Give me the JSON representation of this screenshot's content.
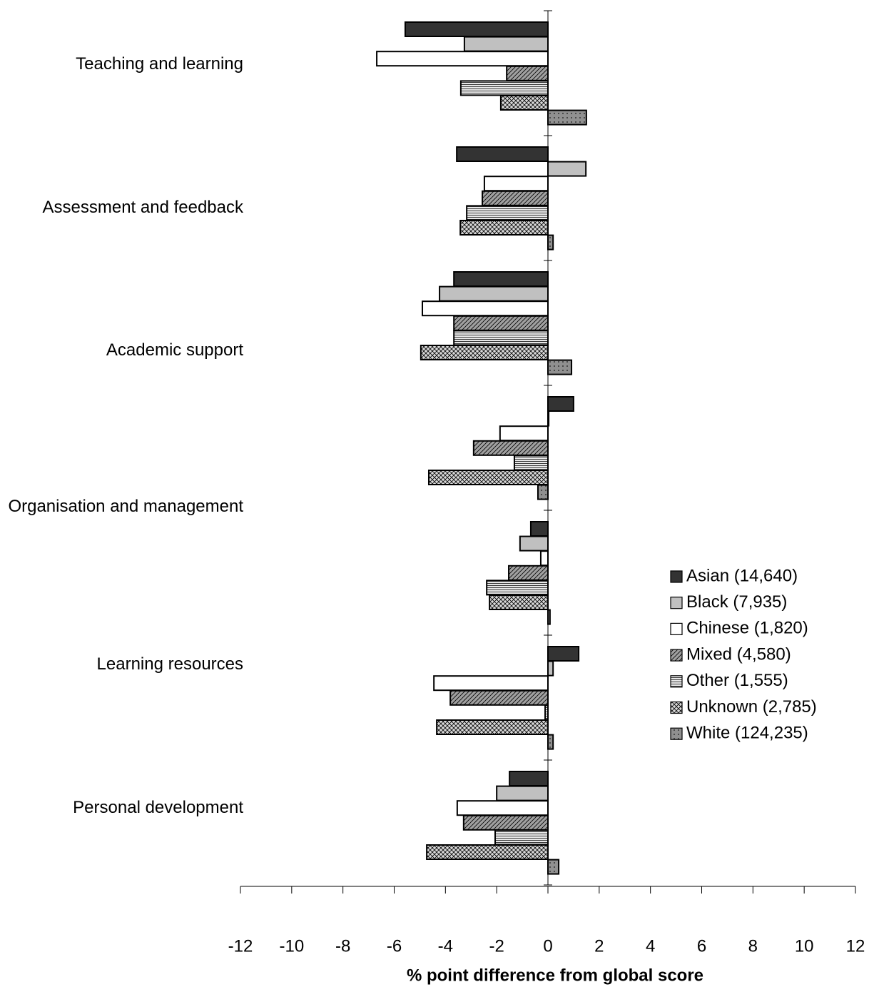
{
  "chart_data": {
    "type": "hbar",
    "xlabel": "% point difference from global score",
    "categories": [
      "Teaching and learning",
      "Assessment and feedback",
      "Academic support",
      "Organisation and management",
      null,
      "Learning resources",
      "Personal development"
    ],
    "series": [
      {
        "name": "Asian (14,640)",
        "color": "#333333",
        "values": [
          -5.57,
          -3.56,
          -3.67,
          1.0,
          -0.67,
          1.2,
          -1.5
        ]
      },
      {
        "name": "Black (7,935)",
        "color": "#c0c0c0",
        "values": [
          -3.26,
          1.48,
          -4.23,
          0.03,
          -1.09,
          0.2,
          -2.0
        ]
      },
      {
        "name": "Chinese (1,820)",
        "color": "#ffffff",
        "values": [
          -6.68,
          -2.48,
          -4.9,
          -1.87,
          -0.28,
          -4.45,
          -3.54
        ]
      },
      {
        "name": "Mixed (4,580)",
        "color": "#a0a0a0",
        "values": [
          -1.61,
          -2.56,
          -3.67,
          -2.9,
          -1.53,
          -3.81,
          -3.29
        ]
      },
      {
        "name": "Other (1,555)",
        "color": "#e8e8e8",
        "values": [
          -3.4,
          -3.17,
          -3.67,
          -1.31,
          -2.39,
          -0.11,
          -2.06
        ]
      },
      {
        "name": "Unknown (2,785)",
        "color": "#d8d8d8",
        "values": [
          -1.84,
          -3.42,
          -4.96,
          -4.65,
          -2.28,
          -4.34,
          -4.73
        ]
      },
      {
        "name": "White (124,235)",
        "color": "#909090",
        "values": [
          1.5,
          0.2,
          0.92,
          -0.39,
          0.08,
          0.2,
          0.42
        ]
      }
    ],
    "xlim": [
      -12,
      12
    ],
    "xticks": [
      -12,
      -10,
      -8,
      -6,
      -4,
      -2,
      0,
      2,
      4,
      6,
      8,
      10,
      12
    ],
    "legend": "right"
  }
}
